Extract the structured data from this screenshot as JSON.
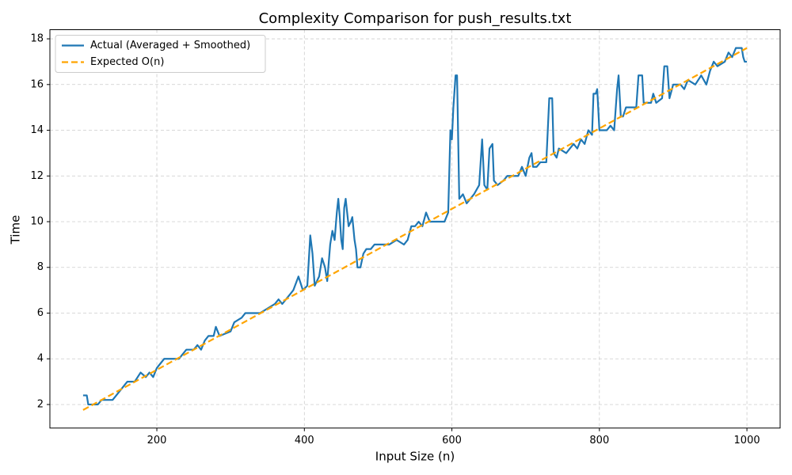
{
  "chart_data": {
    "type": "line",
    "title": "Complexity Comparison for push_results.txt",
    "x_label": "Input Size (n)",
    "y_label": "Time",
    "xlim": [
      55,
      1045
    ],
    "ylim": [
      0.97,
      18.4
    ],
    "xticks": [
      200,
      400,
      600,
      800,
      1000
    ],
    "yticks": [
      2,
      4,
      6,
      8,
      10,
      12,
      14,
      16,
      18
    ],
    "grid": true,
    "legend": "upper left",
    "series": [
      {
        "name": "Actual (Averaged + Smoothed)",
        "color": "#1f77b4",
        "linestyle": "solid",
        "x": [
          100,
          105,
          107,
          120,
          125,
          140,
          145,
          150,
          155,
          160,
          170,
          178,
          185,
          190,
          195,
          200,
          205,
          210,
          230,
          240,
          250,
          255,
          260,
          265,
          270,
          277,
          280,
          285,
          300,
          305,
          315,
          320,
          330,
          340,
          350,
          360,
          365,
          370,
          380,
          385,
          392,
          398,
          404,
          408,
          411,
          414,
          420,
          424,
          428,
          431,
          435,
          438,
          441,
          444,
          446,
          448,
          450,
          452,
          454,
          456,
          458,
          460,
          463,
          465,
          468,
          470,
          472,
          476,
          480,
          484,
          490,
          495,
          515,
          525,
          535,
          540,
          545,
          550,
          555,
          560,
          565,
          570,
          590,
          595,
          598,
          600,
          602,
          605,
          607,
          610,
          615,
          620,
          625,
          630,
          637,
          641,
          644,
          648,
          651,
          655,
          657,
          662,
          670,
          675,
          690,
          695,
          700,
          705,
          708,
          710,
          715,
          720,
          728,
          732,
          736,
          738,
          742,
          745,
          755,
          760,
          765,
          770,
          775,
          780,
          785,
          790,
          792,
          795,
          797,
          800,
          810,
          815,
          820,
          824,
          826,
          829,
          832,
          836,
          850,
          853,
          858,
          860,
          870,
          873,
          877,
          885,
          888,
          892,
          895,
          900,
          910,
          915,
          920,
          930,
          938,
          945,
          950,
          955,
          960,
          970,
          975,
          980,
          985,
          993,
          995,
          997,
          1000
        ],
        "values": [
          2.4,
          2.4,
          2.0,
          2.0,
          2.2,
          2.2,
          2.4,
          2.6,
          2.8,
          3.0,
          3.0,
          3.4,
          3.2,
          3.4,
          3.2,
          3.6,
          3.8,
          4.0,
          4.0,
          4.4,
          4.4,
          4.6,
          4.4,
          4.8,
          5.0,
          5.0,
          5.4,
          5.0,
          5.2,
          5.6,
          5.8,
          6.0,
          6.0,
          6.0,
          6.2,
          6.4,
          6.6,
          6.4,
          6.8,
          7.0,
          7.6,
          7.0,
          7.2,
          9.4,
          8.6,
          7.2,
          7.6,
          8.4,
          8.0,
          7.4,
          9.0,
          9.6,
          9.2,
          10.4,
          11.0,
          10.2,
          9.2,
          8.8,
          10.6,
          11.0,
          10.4,
          9.8,
          10.0,
          10.2,
          9.2,
          8.8,
          8.0,
          8.0,
          8.6,
          8.8,
          8.8,
          9.0,
          9.0,
          9.2,
          9.0,
          9.2,
          9.8,
          9.8,
          10.0,
          9.8,
          10.4,
          10.0,
          10.0,
          10.4,
          14.0,
          13.6,
          15.0,
          16.4,
          16.4,
          11.0,
          11.2,
          10.8,
          11.0,
          11.2,
          11.6,
          13.6,
          11.6,
          11.4,
          13.2,
          13.4,
          11.8,
          11.6,
          11.8,
          12.0,
          12.0,
          12.4,
          12.0,
          12.8,
          13.0,
          12.4,
          12.4,
          12.6,
          12.6,
          15.4,
          15.4,
          13.0,
          12.8,
          13.2,
          13.0,
          13.2,
          13.4,
          13.2,
          13.6,
          13.4,
          14.0,
          13.8,
          15.6,
          15.6,
          15.8,
          14.0,
          14.0,
          14.2,
          14.0,
          15.8,
          16.4,
          14.6,
          14.6,
          15.0,
          15.0,
          16.4,
          16.4,
          15.2,
          15.2,
          15.6,
          15.2,
          15.4,
          16.8,
          16.8,
          15.4,
          16.0,
          16.0,
          15.8,
          16.2,
          16.0,
          16.4,
          16.0,
          16.6,
          17.0,
          16.8,
          17.0,
          17.4,
          17.2,
          17.6,
          17.6,
          17.2,
          17.0,
          17.0
        ]
      },
      {
        "name": "Expected O(n)",
        "color": "#ffa500",
        "linestyle": "dashed",
        "x": [
          100,
          1000
        ],
        "values": [
          1.76,
          17.6
        ]
      }
    ]
  }
}
